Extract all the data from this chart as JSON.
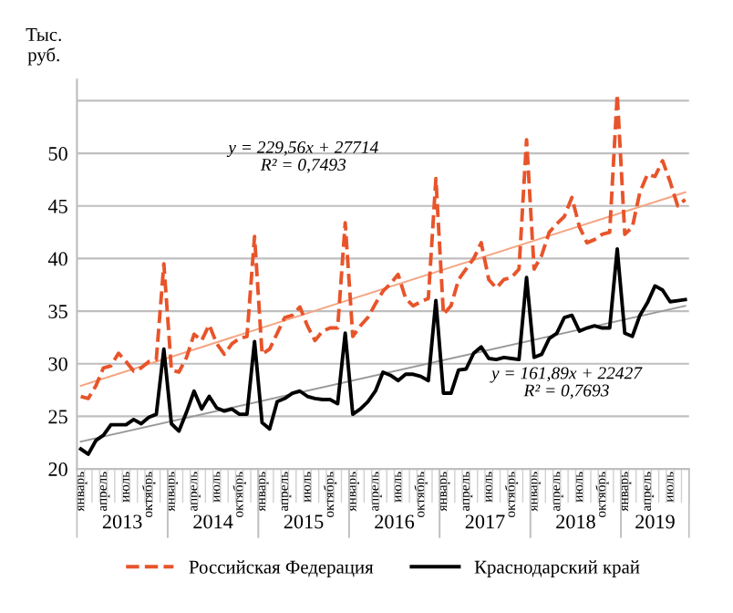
{
  "chart_data": {
    "type": "line",
    "ylabel": "Тыс.\nруб.",
    "categories": [
      "январь",
      null,
      null,
      "апрель",
      null,
      null,
      "июль",
      null,
      null,
      "октябрь",
      null,
      null,
      "январь",
      null,
      null,
      "апрель",
      null,
      null,
      "июль",
      null,
      null,
      "октябрь",
      null,
      null,
      "январь",
      null,
      null,
      "апрель",
      null,
      null,
      "июль",
      null,
      null,
      "октябрь",
      null,
      null,
      "январь",
      null,
      null,
      "апрель",
      null,
      null,
      "июль",
      null,
      null,
      "октябрь",
      null,
      null,
      "январь",
      null,
      null,
      "апрель",
      null,
      null,
      "июль",
      null,
      null,
      "октябрь",
      null,
      null,
      "январь",
      null,
      null,
      "апрель",
      null,
      null,
      "июль",
      null,
      null,
      "октябрь",
      null,
      null,
      "январь",
      null,
      null,
      "апрель",
      null,
      null,
      "июль",
      null,
      null
    ],
    "series": [
      {
        "name": "Российская Федерация",
        "color": "#e8542a",
        "line_style": "dashed",
        "values": [
          26.9,
          26.7,
          27.9,
          29.6,
          29.8,
          31.0,
          30.2,
          29.3,
          29.6,
          30.2,
          30.4,
          39.5,
          29.4,
          29.2,
          30.6,
          32.8,
          32.2,
          33.7,
          31.9,
          30.9,
          31.9,
          32.4,
          32.6,
          42.1,
          30.9,
          31.4,
          32.9,
          34.4,
          34.6,
          35.4,
          33.6,
          32.2,
          33.1,
          33.4,
          33.4,
          43.4,
          32.6,
          33.6,
          34.4,
          35.7,
          36.9,
          37.6,
          38.5,
          36.2,
          35.5,
          35.9,
          36.2,
          47.6,
          34.7,
          35.5,
          38.0,
          39.0,
          40.0,
          41.5,
          38.0,
          37.2,
          38.0,
          38.2,
          39.0,
          51.3,
          39.0,
          40.3,
          42.5,
          43.3,
          44.0,
          45.8,
          43.0,
          41.5,
          41.8,
          42.3,
          42.5,
          55.6,
          42.3,
          43.0,
          46.3,
          48.0,
          47.8,
          49.3,
          47.3,
          45.0,
          45.6
        ]
      },
      {
        "name": "Краснодарский край",
        "color": "#000000",
        "line_style": "solid",
        "values": [
          21.9,
          21.4,
          22.7,
          23.2,
          24.2,
          24.2,
          24.2,
          24.7,
          24.3,
          24.9,
          25.2,
          31.4,
          24.3,
          23.6,
          25.4,
          27.4,
          25.7,
          26.9,
          25.8,
          25.5,
          25.7,
          25.2,
          25.2,
          32.1,
          24.4,
          23.8,
          26.4,
          26.7,
          27.2,
          27.4,
          26.9,
          26.7,
          26.6,
          26.6,
          26.2,
          32.9,
          25.2,
          25.7,
          26.4,
          27.4,
          29.2,
          28.9,
          28.4,
          29.0,
          29.0,
          28.8,
          28.4,
          36.0,
          27.2,
          27.2,
          29.4,
          29.5,
          31.0,
          31.6,
          30.5,
          30.4,
          30.6,
          30.5,
          30.4,
          38.2,
          30.6,
          30.9,
          32.4,
          32.9,
          34.4,
          34.6,
          33.1,
          33.4,
          33.6,
          33.4,
          33.4,
          40.9,
          32.9,
          32.6,
          34.6,
          35.8,
          37.4,
          37.0,
          35.9,
          36.0,
          36.1
        ]
      },
      {
        "color": "#f4a582",
        "line_style": "solid",
        "values": [
          27.9,
          null,
          null,
          null,
          null,
          null,
          null,
          null,
          null,
          null,
          null,
          null,
          null,
          null,
          null,
          null,
          null,
          null,
          null,
          null,
          null,
          null,
          null,
          null,
          null,
          null,
          null,
          null,
          null,
          null,
          null,
          null,
          null,
          null,
          null,
          null,
          null,
          null,
          null,
          null,
          null,
          null,
          null,
          null,
          null,
          null,
          null,
          null,
          null,
          null,
          null,
          null,
          null,
          null,
          null,
          null,
          null,
          null,
          null,
          null,
          null,
          null,
          null,
          null,
          null,
          null,
          null,
          null,
          null,
          null,
          null,
          null,
          null,
          null,
          null,
          null,
          null,
          null,
          null,
          null,
          46.3
        ]
      },
      {
        "color": "#999999",
        "line_style": "solid",
        "values": [
          22.6,
          null,
          null,
          null,
          null,
          null,
          null,
          null,
          null,
          null,
          null,
          null,
          null,
          null,
          null,
          null,
          null,
          null,
          null,
          null,
          null,
          null,
          null,
          null,
          null,
          null,
          null,
          null,
          null,
          null,
          null,
          null,
          null,
          null,
          null,
          null,
          null,
          null,
          null,
          null,
          null,
          null,
          null,
          null,
          null,
          null,
          null,
          null,
          null,
          null,
          null,
          null,
          null,
          null,
          null,
          null,
          null,
          null,
          null,
          null,
          null,
          null,
          null,
          null,
          null,
          null,
          null,
          null,
          null,
          null,
          null,
          null,
          null,
          null,
          null,
          null,
          null,
          null,
          null,
          null,
          35.5
        ]
      }
    ],
    "ylim": [
      20,
      57
    ],
    "yticks": [
      20,
      25,
      30,
      35,
      40,
      45,
      50,
      {
        "value": 55,
        "label": null
      }
    ],
    "grid": "y",
    "legend": "bottom",
    "marker": "none",
    "annotations": [
      "y = 229,56x + 27714\nR² = 0,7493",
      "y = 161,89x + 22427\nR² = 0,7693",
      "2013",
      "2014",
      "2015",
      "2016",
      "2017",
      "2018",
      "2019"
    ]
  }
}
